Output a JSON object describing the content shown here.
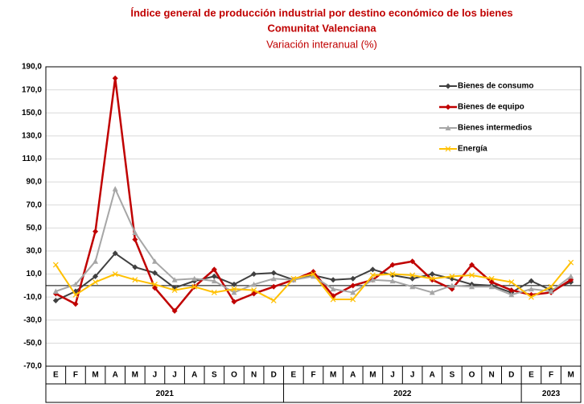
{
  "chart_data": {
    "type": "line",
    "title": [
      "Índice general de producción industrial por destino económico de los bienes",
      "Comunitat Valenciana"
    ],
    "subtitle": "Variación interanual (%)",
    "categories": [
      "E",
      "F",
      "M",
      "A",
      "M",
      "J",
      "J",
      "A",
      "S",
      "O",
      "N",
      "D",
      "E",
      "F",
      "M",
      "A",
      "M",
      "J",
      "J",
      "A",
      "S",
      "O",
      "N",
      "D",
      "E",
      "F",
      "M"
    ],
    "groups": [
      {
        "label": "2021",
        "count": 12
      },
      {
        "label": "2022",
        "count": 12
      },
      {
        "label": "2023",
        "count": 3
      }
    ],
    "series": [
      {
        "name": "Bienes de consumo",
        "color": "#404040",
        "marker": "diamond",
        "values": [
          -13,
          -5,
          8,
          28,
          16,
          11,
          -2,
          4,
          8,
          1,
          10,
          11,
          5,
          9,
          5,
          6,
          14,
          9,
          6,
          10,
          6,
          1,
          0,
          -6,
          4,
          -4,
          3
        ]
      },
      {
        "name": "Bienes de equipo",
        "color": "#c00000",
        "marker": "diamond",
        "values": [
          -7,
          -16,
          47,
          180,
          40,
          -2,
          -22,
          -1,
          14,
          -14,
          -7,
          -1,
          5,
          12,
          -9,
          0,
          5,
          18,
          21,
          5,
          -3,
          18,
          3,
          -4,
          -8,
          -6,
          5
        ]
      },
      {
        "name": "Bienes intermedios",
        "color": "#a6a6a6",
        "marker": "triangle",
        "values": [
          -5,
          1,
          21,
          84,
          46,
          21,
          5,
          6,
          4,
          -6,
          1,
          6,
          5,
          8,
          -3,
          -6,
          5,
          4,
          -1,
          -6,
          0,
          -1,
          -1,
          -8,
          -3,
          -5,
          8
        ]
      },
      {
        "name": "Energía",
        "color": "#ffc000",
        "marker": "x",
        "values": [
          18,
          -8,
          3,
          10,
          5,
          1,
          -4,
          -1,
          -6,
          -3,
          -4,
          -13,
          6,
          10,
          -12,
          -12,
          9,
          10,
          9,
          6,
          8,
          9,
          6,
          3,
          -10,
          -1,
          20
        ]
      }
    ],
    "ylim": [
      -70,
      190
    ],
    "yticks": [
      {
        "value": -70,
        "label": "-70,0"
      },
      {
        "value": -50,
        "label": "-50,0"
      },
      {
        "value": -30,
        "label": "-30,0"
      },
      {
        "value": -10,
        "label": "-10,0"
      },
      {
        "value": 10,
        "label": "10,0"
      },
      {
        "value": 30,
        "label": "30,0"
      },
      {
        "value": 50,
        "label": "50,0"
      },
      {
        "value": 70,
        "label": "70,0"
      },
      {
        "value": 90,
        "label": "90,0"
      },
      {
        "value": 110,
        "label": "110,0"
      },
      {
        "value": 130,
        "label": "130,0"
      },
      {
        "value": 150,
        "label": "150,0"
      },
      {
        "value": 170,
        "label": "170,0"
      },
      {
        "value": 190,
        "label": "190,0"
      }
    ],
    "grid": true,
    "legend": "upper right"
  }
}
